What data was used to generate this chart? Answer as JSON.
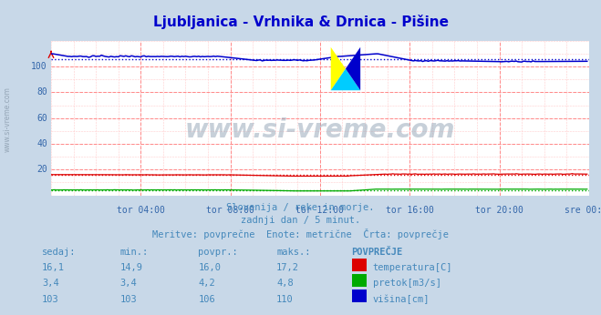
{
  "title": "Ljubljanica - Vrhnika & Drnica - Pišine",
  "title_color": "#0000cc",
  "background_color": "#c8d8e8",
  "plot_bg_color": "#ffffff",
  "grid_color_major": "#ff8888",
  "grid_color_minor": "#ffcccc",
  "label_color": "#3366aa",
  "xlim": [
    0,
    288
  ],
  "ylim": [
    0,
    120
  ],
  "yticks": [
    20,
    40,
    60,
    80,
    100
  ],
  "xtick_labels": [
    "tor 04:00",
    "tor 08:00",
    "tor 12:00",
    "tor 16:00",
    "tor 20:00",
    "sre 00:00"
  ],
  "xtick_positions": [
    48,
    96,
    144,
    192,
    240,
    288
  ],
  "subtitle_line1": "Slovenija / reke in morje.",
  "subtitle_line2": "zadnji dan / 5 minut.",
  "subtitle_line3": "Meritve: povprečne  Enote: metrične  Črta: povprečje",
  "subtitle_color": "#4488bb",
  "table_header": [
    "sedaj:",
    "min.:",
    "povpr.:",
    "maks.:",
    "POVPREČJE"
  ],
  "table_data": [
    [
      "16,1",
      "14,9",
      "16,0",
      "17,2",
      "temperatura[C]",
      "#dd0000"
    ],
    [
      "3,4",
      "3,4",
      "4,2",
      "4,8",
      "pretok[m3/s]",
      "#00aa00"
    ],
    [
      "103",
      "103",
      "106",
      "110",
      "višina[cm]",
      "#0000cc"
    ]
  ],
  "table_color": "#4488bb",
  "temp_color": "#dd0000",
  "flow_color": "#00aa00",
  "height_color": "#0000cc",
  "temp_avg": 16.0,
  "flow_avg": 4.2,
  "height_avg": 106.0,
  "n_points": 288,
  "watermark_text": "www.si-vreme.com",
  "watermark_color": "#aabbcc",
  "sivreme_text": "www.si-vreme.com"
}
